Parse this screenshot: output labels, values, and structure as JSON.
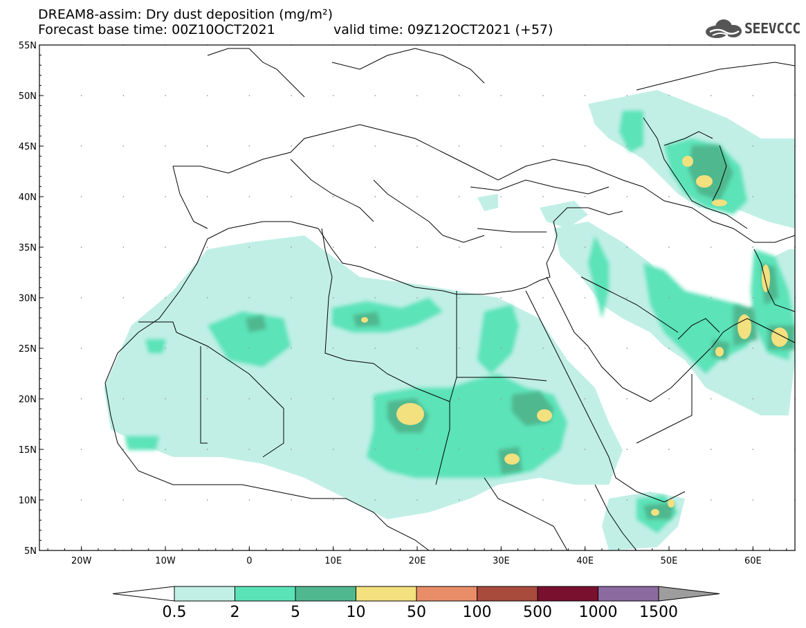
{
  "title": {
    "line1": "DREAM8-assim: Dry dust deposition (mg/m²)",
    "line2_left": "Forecast base time: 00Z10OCT2021",
    "line2_right": "valid time: 09Z12OCT2021 (+57)"
  },
  "logo": {
    "text": "SEEVCCC",
    "icon": "cloud-icon"
  },
  "map": {
    "lon_range": [
      -25,
      65
    ],
    "lat_range": [
      5,
      55
    ],
    "lat_ticks": [
      {
        "value": 55,
        "label": "55N"
      },
      {
        "value": 50,
        "label": "50N"
      },
      {
        "value": 45,
        "label": "45N"
      },
      {
        "value": 40,
        "label": "40N"
      },
      {
        "value": 35,
        "label": "35N"
      },
      {
        "value": 30,
        "label": "30N"
      },
      {
        "value": 25,
        "label": "25N"
      },
      {
        "value": 20,
        "label": "20N"
      },
      {
        "value": 15,
        "label": "15N"
      },
      {
        "value": 10,
        "label": "10N"
      },
      {
        "value": 5,
        "label": "5N"
      }
    ],
    "lon_ticks": [
      {
        "value": -20,
        "label": "20W"
      },
      {
        "value": -10,
        "label": "10W"
      },
      {
        "value": 0,
        "label": "0"
      },
      {
        "value": 10,
        "label": "10E"
      },
      {
        "value": 20,
        "label": "20E"
      },
      {
        "value": 30,
        "label": "30E"
      },
      {
        "value": 40,
        "label": "40E"
      },
      {
        "value": 50,
        "label": "50E"
      },
      {
        "value": 60,
        "label": "60E"
      }
    ],
    "grid": "dotted"
  },
  "colorbar": {
    "levels": [
      "0.5",
      "2",
      "5",
      "10",
      "50",
      "100",
      "500",
      "1000",
      "1500"
    ],
    "colors": [
      "#c1efe6",
      "#5be3b8",
      "#4fb88f",
      "#f3e07e",
      "#e98d69",
      "#a84a3c",
      "#78102e",
      "#8b6aa0",
      "#9d9d9d"
    ],
    "under_color": "#ffffff"
  }
}
